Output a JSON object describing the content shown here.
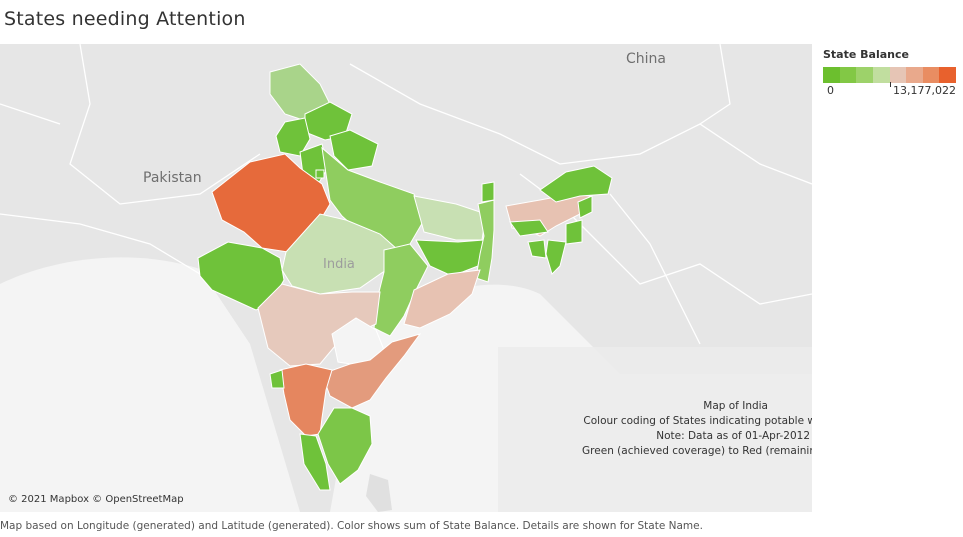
{
  "title": "States needing Attention",
  "map": {
    "labels": {
      "china": "China",
      "pakistan": "Pakistan",
      "india": "India"
    },
    "copyright": "© 2021 Mapbox © OpenStreetMap",
    "states": [
      {
        "name": "Jammu and Kashmir",
        "color": "#a9d48a"
      },
      {
        "name": "Himachal Pradesh",
        "color": "#6fc23a"
      },
      {
        "name": "Punjab",
        "color": "#6fc23a"
      },
      {
        "name": "Uttarakhand",
        "color": "#6fc23a"
      },
      {
        "name": "Haryana",
        "color": "#6fc23a"
      },
      {
        "name": "Rajasthan",
        "color": "#e66a3b"
      },
      {
        "name": "Gujarat",
        "color": "#6fc23a"
      },
      {
        "name": "Uttar Pradesh",
        "color": "#8fcd5f"
      },
      {
        "name": "Madhya Pradesh",
        "color": "#c8e0b3"
      },
      {
        "name": "Bihar",
        "color": "#c8e0b3"
      },
      {
        "name": "Jharkhand",
        "color": "#6fc23a"
      },
      {
        "name": "West Bengal",
        "color": "#8fcd5f"
      },
      {
        "name": "Chhattisgarh",
        "color": "#8fcd5f"
      },
      {
        "name": "Odisha",
        "color": "#e7c2b2"
      },
      {
        "name": "Maharashtra",
        "color": "#e6c9bc"
      },
      {
        "name": "Telangana",
        "color": "#f4f4f4"
      },
      {
        "name": "Andhra Pradesh",
        "color": "#e39b7d"
      },
      {
        "name": "Karnataka",
        "color": "#e5865f"
      },
      {
        "name": "Goa",
        "color": "#6fc23a"
      },
      {
        "name": "Kerala",
        "color": "#6fc23a"
      },
      {
        "name": "Tamil Nadu",
        "color": "#7cc648"
      },
      {
        "name": "Sikkim",
        "color": "#6fc23a"
      },
      {
        "name": "Assam",
        "color": "#e7c2b2"
      },
      {
        "name": "Arunachal Pradesh",
        "color": "#6fc23a"
      },
      {
        "name": "Meghalaya",
        "color": "#6fc23a"
      },
      {
        "name": "Nagaland",
        "color": "#6fc23a"
      },
      {
        "name": "Manipur",
        "color": "#6fc23a"
      },
      {
        "name": "Mizoram",
        "color": "#6fc23a"
      },
      {
        "name": "Tripura",
        "color": "#6fc23a"
      },
      {
        "name": "Delhi",
        "color": "#6fc23a"
      }
    ],
    "note_lines": [
      "Map of India",
      "Colour coding of States indicating potable w",
      "Note: Data as of 01-Apr-2012",
      "Green (achieved coverage) to Red (remainin"
    ]
  },
  "legend": {
    "title": "State Balance",
    "min": "0",
    "max": "13,177,022",
    "colors": [
      "#6cbf2e",
      "#82c845",
      "#9dd26a",
      "#c1de9f",
      "#e6c5b5",
      "#e9a98c",
      "#e98d62",
      "#e8612d"
    ]
  },
  "caption": "Map based on Longitude (generated) and Latitude (generated).  Color shows sum of State Balance.  Details are shown for State Name."
}
